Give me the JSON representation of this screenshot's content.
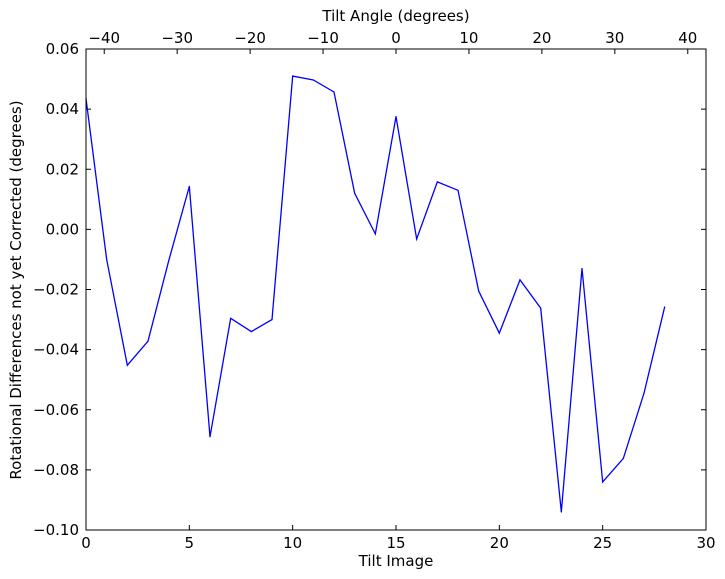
{
  "chart_data": {
    "type": "line",
    "xlabel": "Tilt Image",
    "ylabel": "Rotational Differences not yet Corrected (degrees)",
    "top_xlabel": "Tilt Angle (degrees)",
    "xlim": [
      0,
      30
    ],
    "ylim": [
      -0.1,
      0.06
    ],
    "top_xlim": [
      -42.5,
      42.5
    ],
    "x_ticks": [
      0,
      5,
      10,
      15,
      20,
      25,
      30
    ],
    "x_tick_labels": [
      "0",
      "5",
      "10",
      "15",
      "20",
      "25",
      "30"
    ],
    "y_ticks": [
      -0.1,
      -0.08,
      -0.06,
      -0.04,
      -0.02,
      0.0,
      0.02,
      0.04,
      0.06
    ],
    "y_tick_labels": [
      "−0.10",
      "−0.08",
      "−0.06",
      "−0.04",
      "−0.02",
      "0.00",
      "0.02",
      "0.04",
      "0.06"
    ],
    "top_ticks": [
      -40,
      -30,
      -20,
      -10,
      0,
      10,
      20,
      30,
      40
    ],
    "top_tick_labels": [
      "−40",
      "−30",
      "−20",
      "−10",
      "0",
      "10",
      "20",
      "30",
      "40"
    ],
    "grid": false,
    "line_color": "#0000ff",
    "series": [
      {
        "x": [
          0,
          1,
          2,
          3,
          4,
          5,
          6,
          7,
          8,
          9,
          10,
          11,
          12,
          13,
          14,
          15,
          16,
          17,
          18,
          19,
          20,
          21,
          22,
          23,
          24,
          25,
          26,
          27,
          28
        ],
        "values": [
          0.0435,
          -0.01,
          -0.0452,
          -0.0372,
          -0.0105,
          0.0143,
          -0.069,
          -0.0296,
          -0.034,
          -0.03,
          0.051,
          0.0497,
          0.0457,
          0.012,
          -0.0015,
          0.0375,
          -0.0032,
          0.0158,
          0.013,
          -0.0205,
          -0.0345,
          -0.0168,
          -0.0262,
          -0.094,
          -0.013,
          -0.084,
          -0.0762,
          -0.0545,
          -0.0258
        ]
      }
    ]
  }
}
